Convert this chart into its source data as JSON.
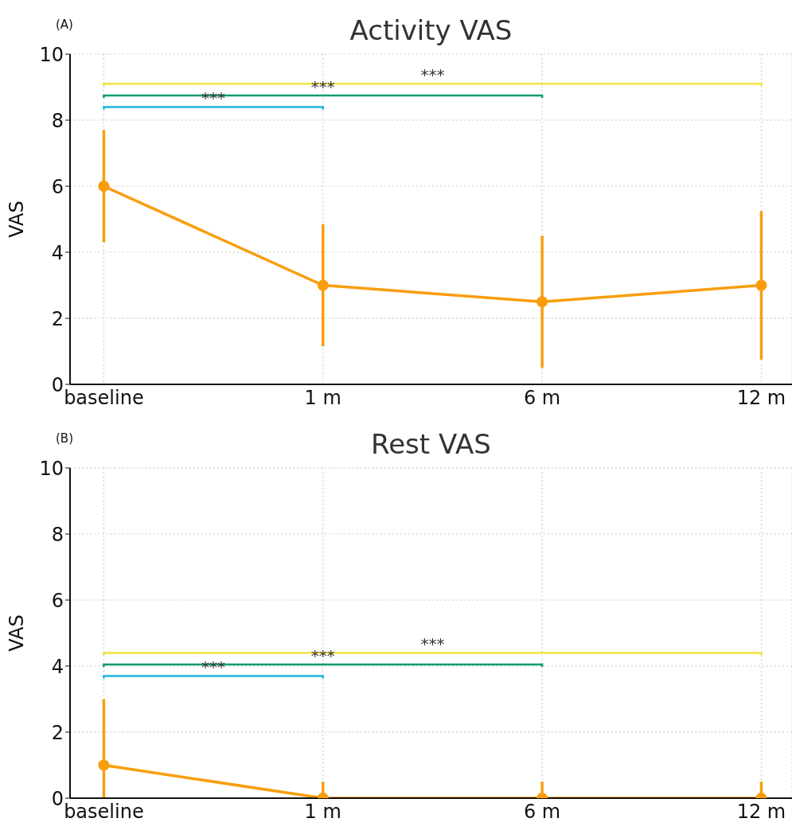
{
  "chart_data": [
    {
      "type": "line",
      "title": "Activity VAS",
      "ylabel": "VAS",
      "categories": [
        "baseline",
        "1 m",
        "6 m",
        "12 m"
      ],
      "ylim": [
        0,
        10
      ],
      "yticks": [
        0,
        2,
        4,
        6,
        8,
        10
      ],
      "grid": true,
      "marker": "circle",
      "line_style": "solid",
      "annotations": [
        "(A)",
        "***",
        "***",
        "***"
      ],
      "series": [
        {
          "color": "#f99d0d",
          "values": [
            6,
            3,
            2.5,
            3
          ],
          "errors": [
            1.7,
            1.85,
            2,
            2.25
          ]
        }
      ]
    },
    {
      "type": "line",
      "title": "Rest VAS",
      "ylabel": "VAS",
      "categories": [
        "baseline",
        "1 m",
        "6 m",
        "12 m"
      ],
      "ylim": [
        0,
        10
      ],
      "yticks": [
        0,
        2,
        4,
        6,
        8,
        10
      ],
      "grid": true,
      "marker": "circle",
      "line_style": "solid",
      "annotations": [
        "(B)",
        "***",
        "***",
        "***"
      ],
      "series": [
        {
          "color": "#f99d0d",
          "values": [
            1,
            0,
            0,
            0
          ],
          "errors": [
            [
              0,
              3
            ],
            [
              0,
              0.5
            ],
            [
              0,
              0.5
            ],
            [
              0,
              0.5
            ]
          ]
        }
      ]
    }
  ]
}
